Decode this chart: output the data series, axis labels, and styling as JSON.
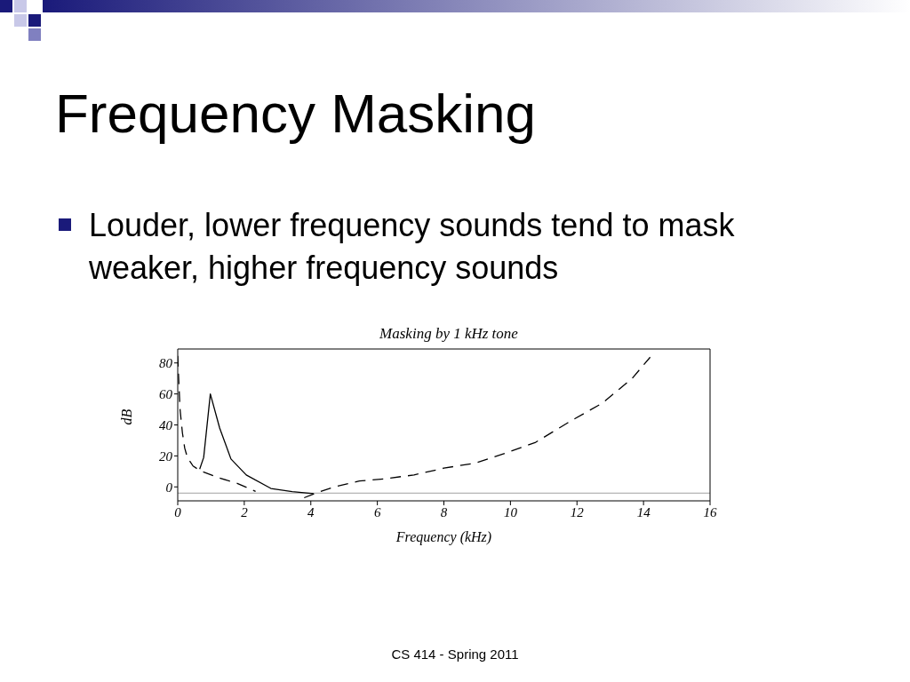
{
  "chart_data": {
    "type": "line",
    "title": "Masking by 1 kHz tone",
    "xlabel": "Frequency (kHz)",
    "ylabel": "dB",
    "annotations": [
      "Frequency Masking",
      "Louder, lower frequency sounds tend to mask weaker, higher frequency sounds",
      "CS 414 - Spring 2011"
    ],
    "xlim": [
      0,
      16
    ],
    "xticks": [
      0,
      2,
      4,
      6,
      8,
      10,
      12,
      14,
      16
    ],
    "ylim": [
      -9,
      89
    ],
    "yticks": [
      0,
      20,
      40,
      60,
      80
    ],
    "marker": "none",
    "ref_lines": [
      {
        "axis": "y",
        "value": -4,
        "color": "#a0a0a0"
      }
    ],
    "series": [
      {
        "color": "#000000",
        "line_style": "solid",
        "x": [
          0.66,
          0.78,
          0.98,
          1.26,
          1.6,
          2.06,
          2.8,
          3.44,
          4.08
        ],
        "values": [
          11.5,
          19,
          60,
          38,
          18,
          7.7,
          -1,
          -3,
          -4.4
        ]
      },
      {
        "color": "#000000",
        "line_style": "dashed",
        "x": [
          0.0,
          0.03,
          0.07,
          0.14,
          0.21,
          0.29,
          0.46,
          0.66,
          1.24,
          1.79,
          2.34,
          3.07,
          3.5,
          3.8,
          4.17,
          4.7,
          5.46,
          6.2,
          7.1,
          8,
          8.95,
          9.95,
          10.76,
          11.85,
          12.76,
          13.66,
          14.2
        ],
        "values": [
          84.6,
          69,
          50,
          35,
          25,
          19,
          13.5,
          10.6,
          5.8,
          2.3,
          -2.9,
          null,
          null,
          -7,
          -3.8,
          0,
          3.8,
          5.2,
          7.7,
          12.1,
          15.4,
          22.5,
          28.8,
          43,
          54,
          70,
          83.7
        ]
      }
    ]
  }
}
